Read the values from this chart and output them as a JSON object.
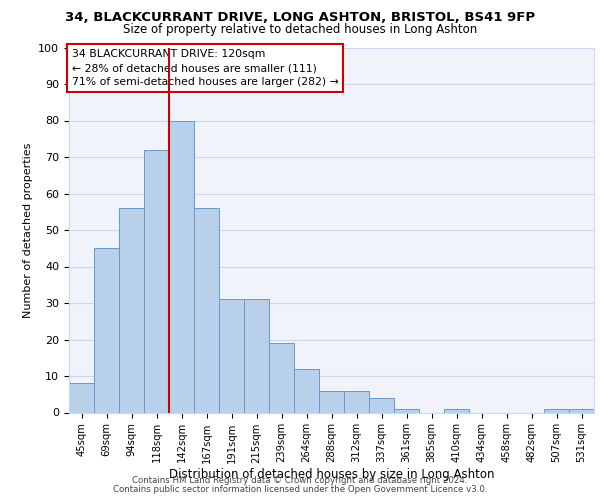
{
  "title1": "34, BLACKCURRANT DRIVE, LONG ASHTON, BRISTOL, BS41 9FP",
  "title2": "Size of property relative to detached houses in Long Ashton",
  "xlabel": "Distribution of detached houses by size in Long Ashton",
  "ylabel": "Number of detached properties",
  "bar_labels": [
    "45sqm",
    "69sqm",
    "94sqm",
    "118sqm",
    "142sqm",
    "167sqm",
    "191sqm",
    "215sqm",
    "239sqm",
    "264sqm",
    "288sqm",
    "312sqm",
    "337sqm",
    "361sqm",
    "385sqm",
    "410sqm",
    "434sqm",
    "458sqm",
    "482sqm",
    "507sqm",
    "531sqm"
  ],
  "bar_values": [
    8,
    45,
    56,
    72,
    80,
    56,
    31,
    31,
    19,
    12,
    6,
    6,
    4,
    1,
    0,
    1,
    0,
    0,
    0,
    1,
    1
  ],
  "bar_color": "#b8d0ea",
  "bar_edge_color": "#6699cc",
  "grid_color": "#c8d8ee",
  "reference_line_x": 3.5,
  "reference_line_color": "#cc0000",
  "annotation_title": "34 BLACKCURRANT DRIVE: 120sqm",
  "annotation_line1": "← 28% of detached houses are smaller (111)",
  "annotation_line2": "71% of semi-detached houses are larger (282) →",
  "annotation_box_color": "#cc0000",
  "ylim": [
    0,
    100
  ],
  "yticks": [
    0,
    10,
    20,
    30,
    40,
    50,
    60,
    70,
    80,
    90,
    100
  ],
  "footer1": "Contains HM Land Registry data © Crown copyright and database right 2024.",
  "footer2": "Contains public sector information licensed under the Open Government Licence v3.0.",
  "bg_color": "#f0f4fa"
}
